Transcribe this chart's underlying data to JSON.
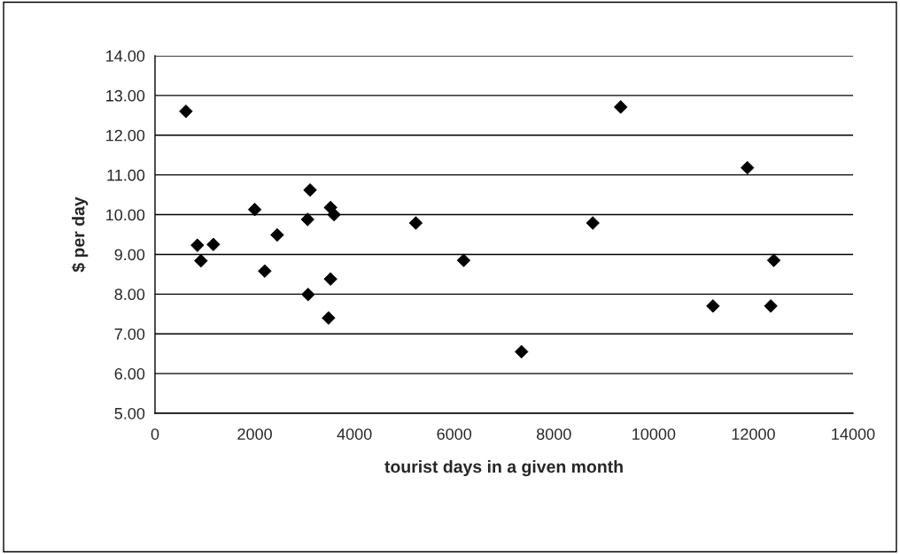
{
  "chart_data": {
    "type": "scatter",
    "xlabel": "tourist days in a given month",
    "ylabel": "$ per day",
    "x": [
      620,
      850,
      920,
      1170,
      2000,
      2200,
      2450,
      3110,
      3060,
      3070,
      3520,
      3590,
      3520,
      3480,
      5230,
      6190,
      7350,
      8780,
      9340,
      11190,
      11880,
      12410,
      12350
    ],
    "values": [
      12.6,
      9.23,
      8.84,
      9.25,
      10.13,
      8.58,
      9.49,
      10.62,
      9.88,
      7.99,
      10.18,
      10.0,
      8.38,
      7.4,
      9.79,
      8.85,
      6.55,
      9.79,
      12.71,
      7.7,
      11.18,
      8.85,
      7.7
    ],
    "color": "#000000",
    "marker": "diamond",
    "xlim": [
      0,
      14000
    ],
    "xticks": [
      0,
      2000,
      4000,
      6000,
      8000,
      10000,
      12000,
      14000
    ],
    "ylim": [
      5,
      14
    ],
    "yticks": [
      {
        "value": 5,
        "label": "5.00"
      },
      {
        "value": 6,
        "label": "6.00"
      },
      {
        "value": 7,
        "label": "7.00"
      },
      {
        "value": 8,
        "label": "8.00"
      },
      {
        "value": 9,
        "label": "9.00"
      },
      {
        "value": 10,
        "label": "10.00"
      },
      {
        "value": 11,
        "label": "11.00"
      },
      {
        "value": 12,
        "label": "12.00"
      },
      {
        "value": 13,
        "label": "13.00"
      },
      {
        "value": 14,
        "label": "14.00"
      }
    ],
    "grid": "y",
    "legend": false
  }
}
